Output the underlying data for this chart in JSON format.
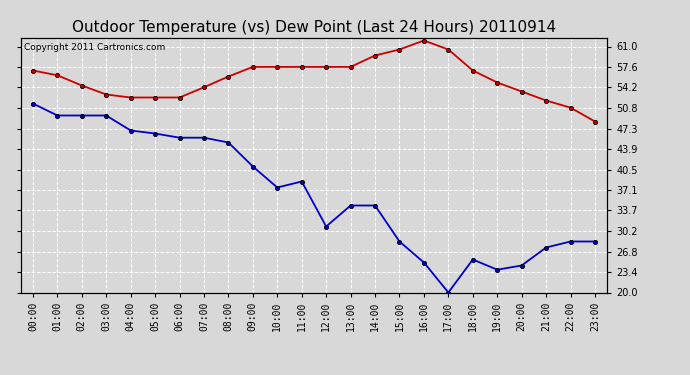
{
  "title": "Outdoor Temperature (vs) Dew Point (Last 24 Hours) 20110914",
  "copyright_text": "Copyright 2011 Cartronics.com",
  "hours": [
    "00:00",
    "01:00",
    "02:00",
    "03:00",
    "04:00",
    "05:00",
    "06:00",
    "07:00",
    "08:00",
    "09:00",
    "10:00",
    "11:00",
    "12:00",
    "13:00",
    "14:00",
    "15:00",
    "16:00",
    "17:00",
    "18:00",
    "19:00",
    "20:00",
    "21:00",
    "22:00",
    "23:00"
  ],
  "temp_red": [
    57.0,
    56.2,
    54.5,
    53.0,
    52.5,
    52.5,
    52.5,
    54.2,
    56.0,
    57.6,
    57.6,
    57.6,
    57.6,
    57.6,
    59.5,
    60.5,
    62.0,
    60.5,
    57.0,
    55.0,
    53.5,
    52.0,
    50.8,
    48.5
  ],
  "temp_blue": [
    51.5,
    49.5,
    49.5,
    49.5,
    47.0,
    46.5,
    45.8,
    45.8,
    45.0,
    41.0,
    37.5,
    38.5,
    31.0,
    34.5,
    34.5,
    28.5,
    25.0,
    20.0,
    25.5,
    23.8,
    24.5,
    27.5,
    28.5,
    28.5
  ],
  "ylim": [
    20.0,
    62.5
  ],
  "yticks_right": [
    20.0,
    23.4,
    26.8,
    30.2,
    33.7,
    37.1,
    40.5,
    43.9,
    47.3,
    50.8,
    54.2,
    57.6,
    61.0
  ],
  "red_color": "#cc0000",
  "blue_color": "#0000cc",
  "marker_black": "#000000",
  "bg_color": "#d8d8d8",
  "plot_bg_color": "#d8d8d8",
  "grid_color": "#ffffff",
  "title_fontsize": 11,
  "tick_fontsize": 7,
  "copyright_fontsize": 6.5
}
